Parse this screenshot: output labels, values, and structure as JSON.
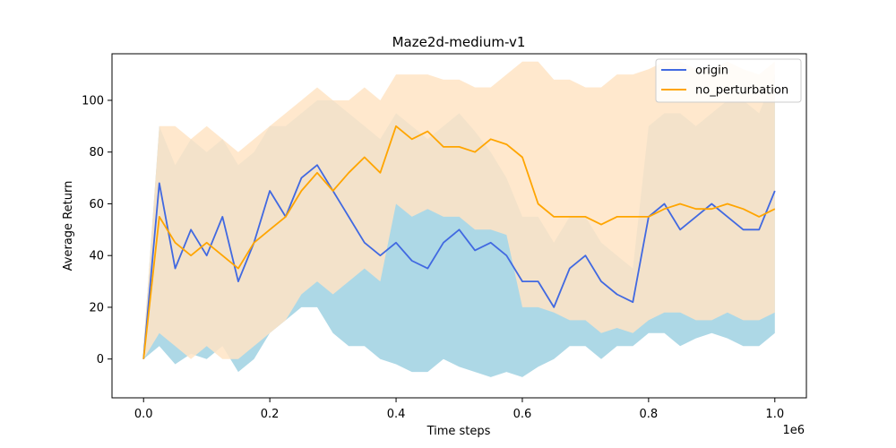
{
  "chart_data": {
    "type": "line",
    "title": "Maze2d-medium-v1",
    "xlabel": "Time steps",
    "ylabel": "Average Return",
    "x_offset_label": "1e6",
    "xlim": [
      -0.05,
      1.05
    ],
    "ylim": [
      -15,
      118
    ],
    "x_ticks": [
      0.0,
      0.2,
      0.4,
      0.6,
      0.8,
      1.0
    ],
    "x_tick_labels": [
      "0.0",
      "0.2",
      "0.4",
      "0.6",
      "0.8",
      "1.0"
    ],
    "y_ticks": [
      0,
      20,
      40,
      60,
      80,
      100
    ],
    "y_tick_labels": [
      "0",
      "20",
      "40",
      "60",
      "80",
      "100"
    ],
    "grid": false,
    "legend_position": "upper right",
    "x": [
      0.0,
      0.025,
      0.05,
      0.075,
      0.1,
      0.125,
      0.15,
      0.175,
      0.2,
      0.225,
      0.25,
      0.275,
      0.3,
      0.325,
      0.35,
      0.375,
      0.4,
      0.425,
      0.45,
      0.475,
      0.5,
      0.525,
      0.55,
      0.575,
      0.6,
      0.625,
      0.65,
      0.675,
      0.7,
      0.725,
      0.75,
      0.775,
      0.8,
      0.825,
      0.85,
      0.875,
      0.9,
      0.925,
      0.95,
      0.975,
      1.0
    ],
    "series": [
      {
        "name": "origin",
        "color": "#4169e1",
        "band_color": "#add8e6",
        "values": [
          0,
          68,
          35,
          50,
          40,
          55,
          30,
          45,
          65,
          55,
          70,
          75,
          65,
          55,
          45,
          40,
          45,
          38,
          35,
          45,
          50,
          42,
          45,
          40,
          30,
          30,
          20,
          35,
          40,
          30,
          25,
          22,
          55,
          60,
          50,
          55,
          60,
          55,
          50,
          50,
          65
        ],
        "lower": [
          0,
          5,
          -2,
          2,
          0,
          5,
          -5,
          0,
          10,
          15,
          20,
          20,
          10,
          5,
          5,
          0,
          -2,
          -5,
          -5,
          0,
          -3,
          -5,
          -7,
          -5,
          -7,
          -3,
          0,
          5,
          5,
          0,
          5,
          5,
          10,
          10,
          5,
          8,
          10,
          8,
          5,
          5,
          10
        ],
        "upper": [
          5,
          90,
          75,
          85,
          80,
          85,
          75,
          80,
          90,
          90,
          95,
          100,
          100,
          95,
          90,
          85,
          95,
          90,
          85,
          90,
          95,
          88,
          80,
          70,
          55,
          55,
          45,
          55,
          55,
          45,
          40,
          35,
          90,
          95,
          95,
          90,
          95,
          100,
          100,
          95,
          110
        ]
      },
      {
        "name": "no_perturbation",
        "color": "#ffa500",
        "band_color": "#ffe4c4",
        "values": [
          0,
          55,
          45,
          40,
          45,
          40,
          35,
          45,
          50,
          55,
          65,
          72,
          65,
          72,
          78,
          72,
          90,
          85,
          88,
          82,
          82,
          80,
          85,
          83,
          78,
          60,
          55,
          55,
          55,
          52,
          55,
          55,
          55,
          58,
          60,
          58,
          58,
          60,
          58,
          55,
          58
        ],
        "lower": [
          0,
          10,
          5,
          0,
          5,
          0,
          0,
          5,
          10,
          15,
          25,
          30,
          25,
          30,
          35,
          30,
          60,
          55,
          58,
          55,
          55,
          50,
          50,
          48,
          20,
          20,
          18,
          15,
          15,
          10,
          12,
          10,
          15,
          18,
          18,
          15,
          15,
          18,
          15,
          15,
          18
        ],
        "upper": [
          5,
          90,
          90,
          85,
          90,
          85,
          80,
          85,
          90,
          95,
          100,
          105,
          100,
          100,
          105,
          100,
          110,
          110,
          110,
          108,
          108,
          105,
          105,
          110,
          115,
          115,
          108,
          108,
          105,
          105,
          110,
          110,
          112,
          115,
          115,
          112,
          112,
          115,
          112,
          110,
          115
        ]
      }
    ]
  }
}
